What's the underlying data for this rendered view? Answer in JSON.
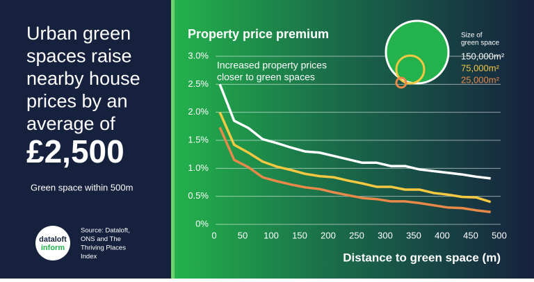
{
  "headline": [
    "Urban green",
    "spaces raise",
    "nearby house",
    "prices by an",
    "average of"
  ],
  "amount": "£2,500",
  "subline": "Green space within 500m",
  "logo": [
    "dataloft",
    "inform"
  ],
  "source": [
    "Source: Dataloft,",
    "ONS and The",
    "Thriving Places",
    "Index"
  ],
  "chart_data": {
    "type": "line",
    "title": "Property price premium",
    "annotation": [
      "Increased property prices",
      "closer to green spaces"
    ],
    "x_label": "Distance to green space (m)",
    "legend_title": [
      "Size of",
      "green space"
    ],
    "x": [
      10,
      35,
      60,
      85,
      110,
      135,
      160,
      185,
      210,
      235,
      260,
      285,
      310,
      335,
      360,
      385,
      410,
      435,
      460,
      485
    ],
    "series": [
      {
        "name": "150,000m²",
        "color": "#ffffff",
        "values": [
          2.5,
          1.85,
          1.72,
          1.52,
          1.45,
          1.37,
          1.3,
          1.28,
          1.22,
          1.16,
          1.1,
          1.1,
          1.04,
          1.04,
          0.98,
          0.95,
          0.92,
          0.89,
          0.85,
          0.82
        ]
      },
      {
        "name": "75,000m²",
        "color": "#f5c842",
        "values": [
          2.0,
          1.42,
          1.28,
          1.12,
          1.03,
          0.97,
          0.9,
          0.86,
          0.84,
          0.78,
          0.73,
          0.67,
          0.67,
          0.62,
          0.62,
          0.56,
          0.53,
          0.49,
          0.48,
          0.4
        ]
      },
      {
        "name": "25,000m²",
        "color": "#e8894a",
        "values": [
          1.73,
          1.15,
          1.02,
          0.84,
          0.77,
          0.71,
          0.66,
          0.63,
          0.57,
          0.52,
          0.47,
          0.45,
          0.41,
          0.41,
          0.38,
          0.34,
          0.3,
          0.29,
          0.25,
          0.22
        ]
      }
    ],
    "xlim": [
      0,
      500
    ],
    "xticks": [
      0,
      50,
      100,
      150,
      200,
      250,
      300,
      350,
      400,
      450,
      500
    ],
    "ylim": [
      0,
      3
    ],
    "yticks": [
      {
        "value": 0,
        "label": "0%"
      },
      {
        "value": 0.5,
        "label": "0.5%"
      },
      {
        "value": 1,
        "label": "1.0%"
      },
      {
        "value": 1.5,
        "label": "1.5%"
      },
      {
        "value": 2,
        "label": "2.0%"
      },
      {
        "value": 2.5,
        "label": "2.5%"
      },
      {
        "value": 3,
        "label": "3.0%"
      }
    ],
    "grid": true
  }
}
